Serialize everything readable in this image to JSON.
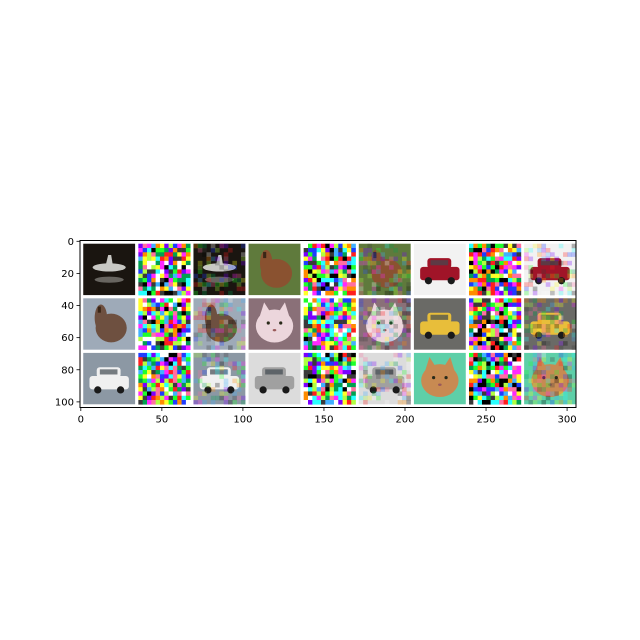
{
  "chart_data": {
    "type": "image",
    "title": "",
    "xlabel": "",
    "ylabel": "",
    "xlim": [
      -0.5,
      305.5
    ],
    "ylim": [
      103.5,
      -0.5
    ],
    "xticks": [
      0,
      50,
      100,
      150,
      200,
      250,
      300
    ],
    "yticks": [
      0,
      20,
      40,
      60,
      80,
      100
    ],
    "xtick_labels": [
      "0",
      "50",
      "100",
      "150",
      "200",
      "250",
      "300"
    ],
    "ytick_labels": [
      "0",
      "20",
      "40",
      "60",
      "80",
      "100"
    ],
    "grid": {
      "rows": 3,
      "cols": 9,
      "tile_size": 32,
      "padding": 2,
      "pad_color": "#ffffff"
    },
    "tiles": [
      {
        "row": 0,
        "col": 0,
        "kind": "clean",
        "subject": "airplane",
        "bg": "#1a1510",
        "fg": "#c8c8c4"
      },
      {
        "row": 0,
        "col": 1,
        "kind": "noise"
      },
      {
        "row": 0,
        "col": 2,
        "kind": "adversarial",
        "subject": "airplane",
        "bg": "#1a1510",
        "fg": "#c8c8c4"
      },
      {
        "row": 0,
        "col": 3,
        "kind": "clean",
        "subject": "horse",
        "bg": "#5f7a3c",
        "fg": "#8a5230"
      },
      {
        "row": 0,
        "col": 4,
        "kind": "noise"
      },
      {
        "row": 0,
        "col": 5,
        "kind": "adversarial",
        "subject": "horse",
        "bg": "#5f7a3c",
        "fg": "#8a5230"
      },
      {
        "row": 0,
        "col": 6,
        "kind": "clean",
        "subject": "car",
        "bg": "#f2f2f2",
        "fg": "#a01428"
      },
      {
        "row": 0,
        "col": 7,
        "kind": "noise"
      },
      {
        "row": 0,
        "col": 8,
        "kind": "adversarial",
        "subject": "car",
        "bg": "#f2f2f2",
        "fg": "#a01428"
      },
      {
        "row": 1,
        "col": 0,
        "kind": "clean",
        "subject": "horse",
        "bg": "#9eaab8",
        "fg": "#6e5040"
      },
      {
        "row": 1,
        "col": 1,
        "kind": "noise"
      },
      {
        "row": 1,
        "col": 2,
        "kind": "adversarial",
        "subject": "horse",
        "bg": "#9eaab8",
        "fg": "#6e5040"
      },
      {
        "row": 1,
        "col": 3,
        "kind": "clean",
        "subject": "cat",
        "bg": "#8a7078",
        "fg": "#ecd6dc"
      },
      {
        "row": 1,
        "col": 4,
        "kind": "noise"
      },
      {
        "row": 1,
        "col": 5,
        "kind": "adversarial",
        "subject": "cat",
        "bg": "#8a7078",
        "fg": "#ecd6dc"
      },
      {
        "row": 1,
        "col": 6,
        "kind": "clean",
        "subject": "car",
        "bg": "#6a6a66",
        "fg": "#e8be3a"
      },
      {
        "row": 1,
        "col": 7,
        "kind": "noise"
      },
      {
        "row": 1,
        "col": 8,
        "kind": "adversarial",
        "subject": "car",
        "bg": "#6a6a66",
        "fg": "#e8be3a"
      },
      {
        "row": 2,
        "col": 0,
        "kind": "clean",
        "subject": "car",
        "bg": "#8c98a4",
        "fg": "#f0f0f0"
      },
      {
        "row": 2,
        "col": 1,
        "kind": "noise"
      },
      {
        "row": 2,
        "col": 2,
        "kind": "adversarial",
        "subject": "car",
        "bg": "#8c98a4",
        "fg": "#f0f0f0"
      },
      {
        "row": 2,
        "col": 3,
        "kind": "clean",
        "subject": "car",
        "bg": "#dcdcdc",
        "fg": "#a0a0a0"
      },
      {
        "row": 2,
        "col": 4,
        "kind": "noise"
      },
      {
        "row": 2,
        "col": 5,
        "kind": "adversarial",
        "subject": "car",
        "bg": "#dcdcdc",
        "fg": "#a0a0a0"
      },
      {
        "row": 2,
        "col": 6,
        "kind": "clean",
        "subject": "cat",
        "bg": "#5ecfa8",
        "fg": "#c88a52"
      },
      {
        "row": 2,
        "col": 7,
        "kind": "noise"
      },
      {
        "row": 2,
        "col": 8,
        "kind": "adversarial",
        "subject": "cat",
        "bg": "#5ecfa8",
        "fg": "#c88a52"
      }
    ]
  }
}
